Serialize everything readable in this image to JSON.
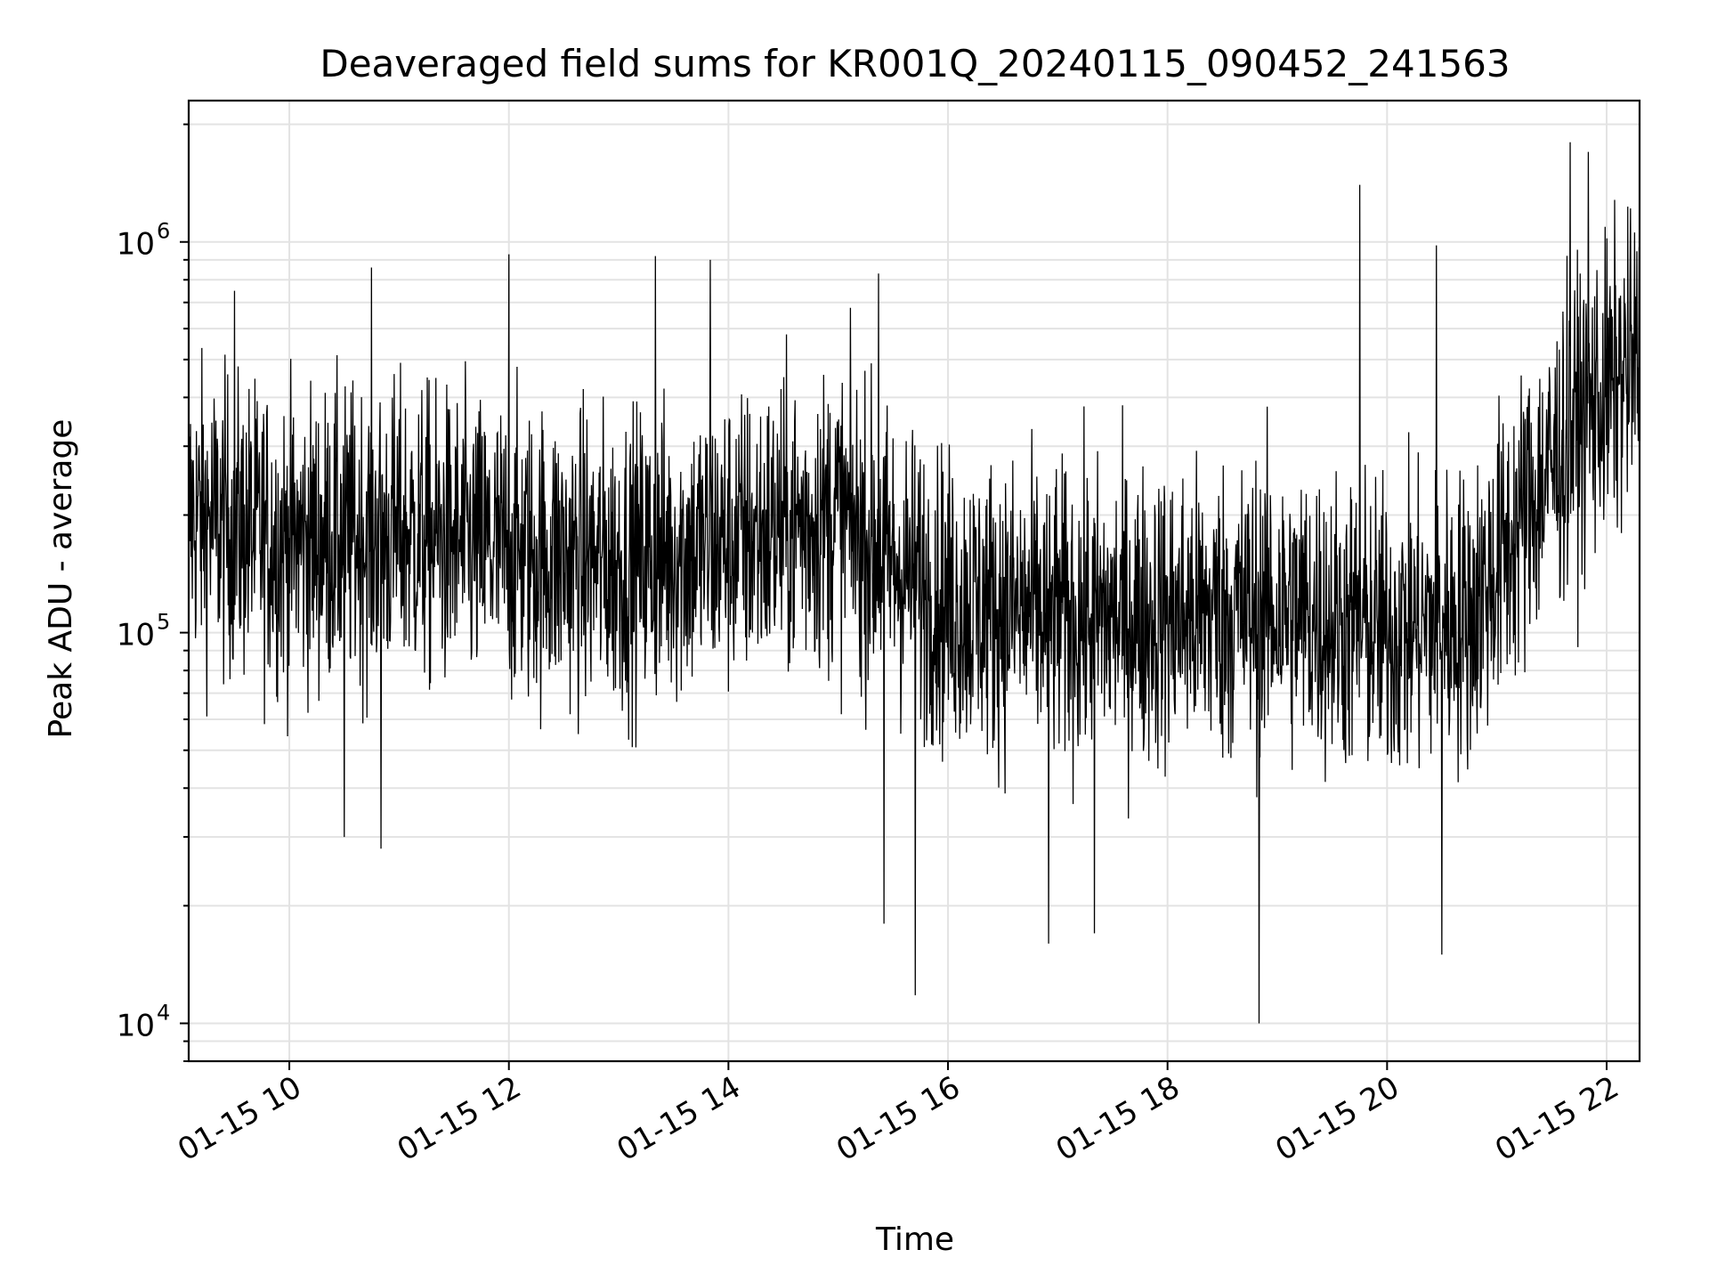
{
  "chart_data": {
    "type": "line",
    "title": "Deaveraged field sums for KR001Q_20240115_090452_241563",
    "xlabel": "Time",
    "ylabel": "Peak ADU - average",
    "yscale": "log",
    "ylim": [
      8000,
      2300000
    ],
    "xlim": [
      "2024-01-15T09:05",
      "2024-01-15T22:18"
    ],
    "grid": true,
    "line_color": "#000000",
    "x_ticks": [
      {
        "value": "2024-01-15T10:00",
        "label": "01-15 10"
      },
      {
        "value": "2024-01-15T12:00",
        "label": "01-15 12"
      },
      {
        "value": "2024-01-15T14:00",
        "label": "01-15 14"
      },
      {
        "value": "2024-01-15T16:00",
        "label": "01-15 16"
      },
      {
        "value": "2024-01-15T18:00",
        "label": "01-15 18"
      },
      {
        "value": "2024-01-15T20:00",
        "label": "01-15 20"
      },
      {
        "value": "2024-01-15T22:00",
        "label": "01-15 22"
      }
    ],
    "y_ticks": [
      {
        "value": 10000,
        "base": "10",
        "exp": "4"
      },
      {
        "value": 100000,
        "base": "10",
        "exp": "5"
      },
      {
        "value": 1000000,
        "base": "10",
        "exp": "6"
      }
    ],
    "series": [
      {
        "trend": [
          {
            "x": "2024-01-15T09:05",
            "y": 200000
          },
          {
            "x": "2024-01-15T10:00",
            "y": 170000
          },
          {
            "x": "2024-01-15T11:00",
            "y": 180000
          },
          {
            "x": "2024-01-15T12:00",
            "y": 160000
          },
          {
            "x": "2024-01-15T13:00",
            "y": 150000
          },
          {
            "x": "2024-01-15T14:00",
            "y": 170000
          },
          {
            "x": "2024-01-15T15:00",
            "y": 200000
          },
          {
            "x": "2024-01-15T15:30",
            "y": 150000
          },
          {
            "x": "2024-01-15T16:00",
            "y": 120000
          },
          {
            "x": "2024-01-15T17:00",
            "y": 110000
          },
          {
            "x": "2024-01-15T18:00",
            "y": 110000
          },
          {
            "x": "2024-01-15T19:00",
            "y": 115000
          },
          {
            "x": "2024-01-15T20:00",
            "y": 100000
          },
          {
            "x": "2024-01-15T20:45",
            "y": 110000
          },
          {
            "x": "2024-01-15T21:15",
            "y": 200000
          },
          {
            "x": "2024-01-15T21:45",
            "y": 350000
          },
          {
            "x": "2024-01-15T22:18",
            "y": 500000
          }
        ],
        "peaks": [
          {
            "x": "2024-01-15T09:30",
            "y": 750000
          },
          {
            "x": "2024-01-15T10:45",
            "y": 860000
          },
          {
            "x": "2024-01-15T12:00",
            "y": 930000
          },
          {
            "x": "2024-01-15T13:20",
            "y": 920000
          },
          {
            "x": "2024-01-15T13:50",
            "y": 900000
          },
          {
            "x": "2024-01-15T15:22",
            "y": 830000
          },
          {
            "x": "2024-01-15T19:45",
            "y": 1400000
          },
          {
            "x": "2024-01-15T20:27",
            "y": 980000
          },
          {
            "x": "2024-01-15T21:40",
            "y": 1800000
          },
          {
            "x": "2024-01-15T21:50",
            "y": 1700000
          }
        ],
        "troughs": [
          {
            "x": "2024-01-15T10:30",
            "y": 30000
          },
          {
            "x": "2024-01-15T10:50",
            "y": 28000
          },
          {
            "x": "2024-01-15T15:25",
            "y": 18000
          },
          {
            "x": "2024-01-15T15:42",
            "y": 11800
          },
          {
            "x": "2024-01-15T16:55",
            "y": 16000
          },
          {
            "x": "2024-01-15T17:20",
            "y": 17000
          },
          {
            "x": "2024-01-15T18:50",
            "y": 10000
          },
          {
            "x": "2024-01-15T20:30",
            "y": 15000
          }
        ]
      }
    ]
  }
}
